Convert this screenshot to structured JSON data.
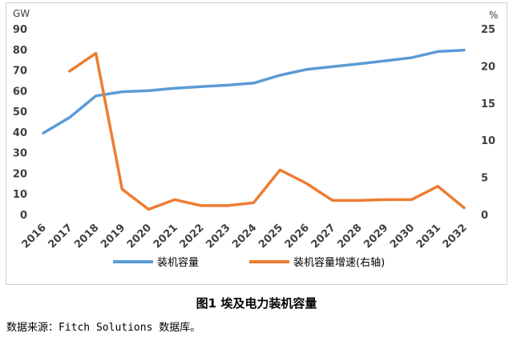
{
  "chart_data": {
    "type": "line",
    "title": "",
    "left_axis": {
      "unit": "GW",
      "ylim": [
        0,
        90
      ],
      "ticks": [
        0,
        10,
        20,
        30,
        40,
        50,
        60,
        70,
        80,
        90
      ]
    },
    "right_axis": {
      "unit": "%",
      "ylim": [
        0,
        25
      ],
      "ticks": [
        0,
        5,
        10,
        15,
        20,
        25
      ]
    },
    "categories": [
      "2016",
      "2017",
      "2018",
      "2019",
      "2020",
      "2021",
      "2022",
      "2023",
      "2024",
      "2025",
      "2026",
      "2027",
      "2028",
      "2029",
      "2030",
      "2031",
      "2032"
    ],
    "series": [
      {
        "name": "装机容量",
        "axis": "left",
        "color": "#5b9bd5",
        "values": [
          39.5,
          47,
          57.5,
          59.5,
          60,
          61.2,
          62,
          62.7,
          63.7,
          67.5,
          70.3,
          71.7,
          73,
          74.5,
          76,
          79,
          79.7
        ]
      },
      {
        "name": "装机容量增速(右轴)",
        "axis": "right",
        "color": "#ed7d31",
        "values": [
          null,
          19.3,
          21.7,
          3.4,
          0.7,
          2.0,
          1.2,
          1.2,
          1.6,
          6.0,
          4.2,
          1.9,
          1.9,
          2.0,
          2.0,
          3.8,
          0.9
        ]
      }
    ],
    "grid": false,
    "legend_position": "bottom"
  },
  "caption": "图1 埃及电力装机容量",
  "source": "数据来源：Fitch Solutions 数据库。"
}
